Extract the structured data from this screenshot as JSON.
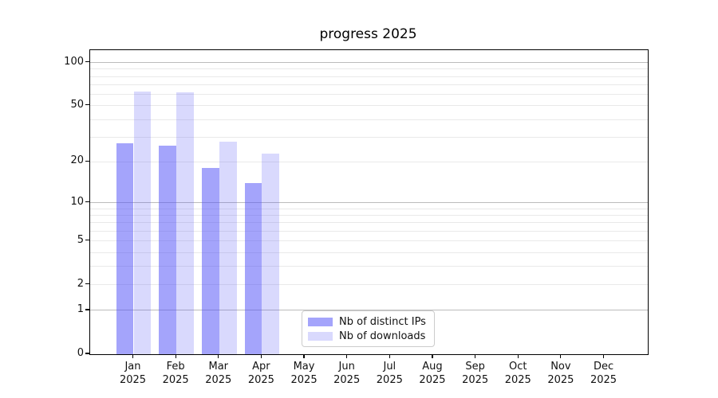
{
  "figure": {
    "background": "#ffffff"
  },
  "chart_data": {
    "type": "bar",
    "title": "progress 2025",
    "categories": [
      "Jan",
      "Feb",
      "Mar",
      "Apr",
      "May",
      "Jun",
      "Jul",
      "Aug",
      "Sep",
      "Oct",
      "Nov",
      "Dec"
    ],
    "category_year": "2025",
    "series": [
      {
        "name": "Nb of distinct IPs",
        "color": "rgba(80,80,248,0.52)",
        "values": [
          27,
          26,
          18,
          14,
          null,
          null,
          null,
          null,
          null,
          null,
          null,
          null
        ]
      },
      {
        "name": "Nb of downloads",
        "color": "rgba(80,80,248,0.22)",
        "values": [
          63,
          62,
          28,
          23,
          null,
          null,
          null,
          null,
          null,
          null,
          null,
          null
        ]
      }
    ],
    "xlabel": "",
    "ylabel": "",
    "yscale": "log1p",
    "ylim": [
      0,
      122
    ],
    "yticks": [
      0,
      1,
      2,
      5,
      10,
      20,
      50,
      100
    ],
    "major_gridlines": [
      1,
      10,
      100
    ],
    "minor_gridlines": [
      2,
      3,
      4,
      5,
      6,
      7,
      8,
      9,
      20,
      30,
      40,
      50,
      60,
      70,
      80,
      90
    ],
    "grid": true,
    "legend_position": "lower center"
  },
  "colors": {
    "major_grid": "#bcbcbc",
    "minor_grid": "#e9e9e9",
    "spine": "#000000",
    "text": "#111111"
  }
}
